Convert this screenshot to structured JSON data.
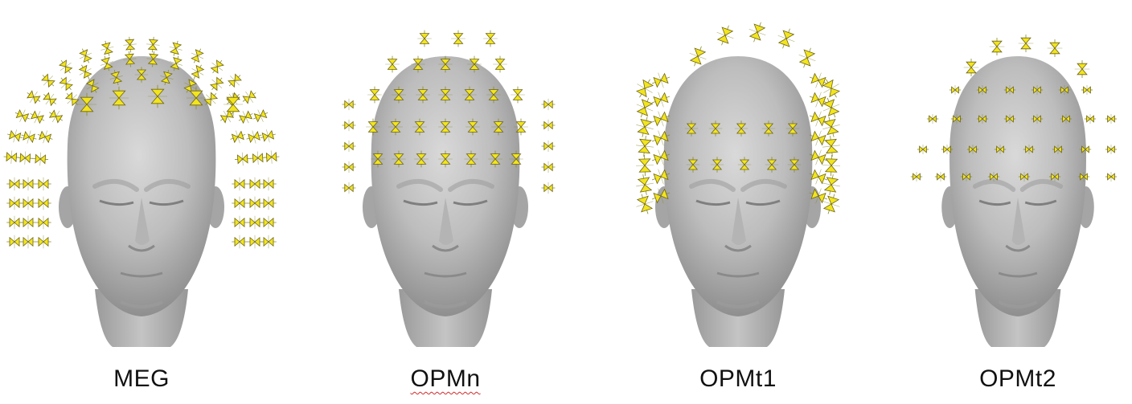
{
  "colors": {
    "sensor_fill": "#f2e51e",
    "sensor_stroke": "#6f6410",
    "stem": "#8a8a2a",
    "head_light": "#cfcfcf",
    "head_mid": "#a9a9a9",
    "head_dark": "#8c8c8c"
  },
  "panels": [
    {
      "label": "MEG",
      "variant": "meg"
    },
    {
      "label": "OPMn",
      "variant": "opmn",
      "spellcheck_underline": true
    },
    {
      "label": "OPMt1",
      "variant": "opmt1"
    },
    {
      "label": "OPMt2",
      "variant": "opmt2"
    }
  ]
}
